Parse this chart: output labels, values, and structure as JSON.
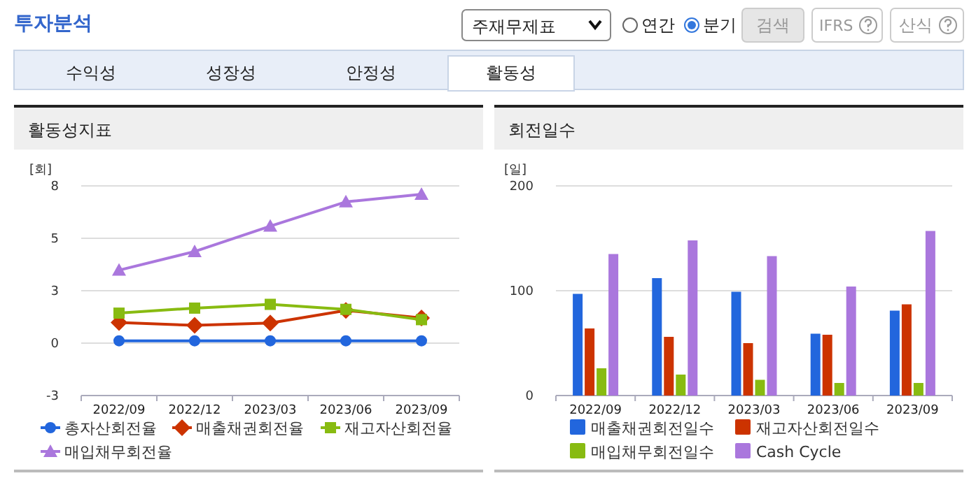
{
  "chart_data": [
    {
      "type": "line",
      "title": "활동성지표",
      "ylabel": "[회]",
      "categories": [
        "2022/09",
        "2022/12",
        "2023/03",
        "2023/06",
        "2023/09"
      ],
      "series": [
        {
          "name": "총자산회전율",
          "color": "#2266dd",
          "marker": "circle",
          "values": [
            0.11,
            0.11,
            0.11,
            0.11,
            0.11
          ]
        },
        {
          "name": "매출채권회전율",
          "color": "#cc3300",
          "marker": "diamond",
          "values": [
            0.98,
            0.85,
            0.96,
            1.56,
            1.2
          ]
        },
        {
          "name": "재고자산회전율",
          "color": "#88bb11",
          "marker": "square",
          "values": [
            1.43,
            1.67,
            1.85,
            1.61,
            1.12
          ]
        },
        {
          "name": "매입채무회전율",
          "color": "#aa77dd",
          "marker": "triangle",
          "values": [
            3.48,
            4.37,
            5.58,
            6.74,
            7.1
          ]
        }
      ],
      "ylim": [
        -2.5,
        7.5
      ],
      "yticks": [
        {
          "value": -2.5,
          "label": "-3"
        },
        0,
        {
          "value": 2.5,
          "label": "3"
        },
        5,
        {
          "value": 7.5,
          "label": "8"
        }
      ],
      "grid": "y",
      "legend": "bottom",
      "line_style": "solid",
      "annotations": [
        "투자분석",
        "주재무제표",
        "연간",
        "분기",
        "검색",
        "IFRS",
        "산식",
        "수익성",
        "성장성",
        "안정성",
        "활동성"
      ]
    },
    {
      "type": "bar",
      "title": "회전일수",
      "ylabel": "[일]",
      "categories": [
        "2022/09",
        "2022/12",
        "2023/03",
        "2023/06",
        "2023/09"
      ],
      "series": [
        {
          "name": "매출채권회전일수",
          "color": "#2266dd",
          "values": [
            97,
            112,
            99,
            59,
            81
          ]
        },
        {
          "name": "재고자산회전일수",
          "color": "#cc3300",
          "values": [
            64,
            56,
            50,
            58,
            87
          ]
        },
        {
          "name": "매입채무회전일수",
          "color": "#88bb11",
          "values": [
            26,
            20,
            15,
            12,
            12
          ]
        },
        {
          "name": "Cash Cycle",
          "color": "#aa77dd",
          "values": [
            135,
            148,
            133,
            104,
            157
          ]
        }
      ],
      "ylim": [
        0,
        200
      ],
      "yticks": [
        0,
        100,
        200
      ],
      "grid": "y",
      "legend": "bottom"
    }
  ]
}
